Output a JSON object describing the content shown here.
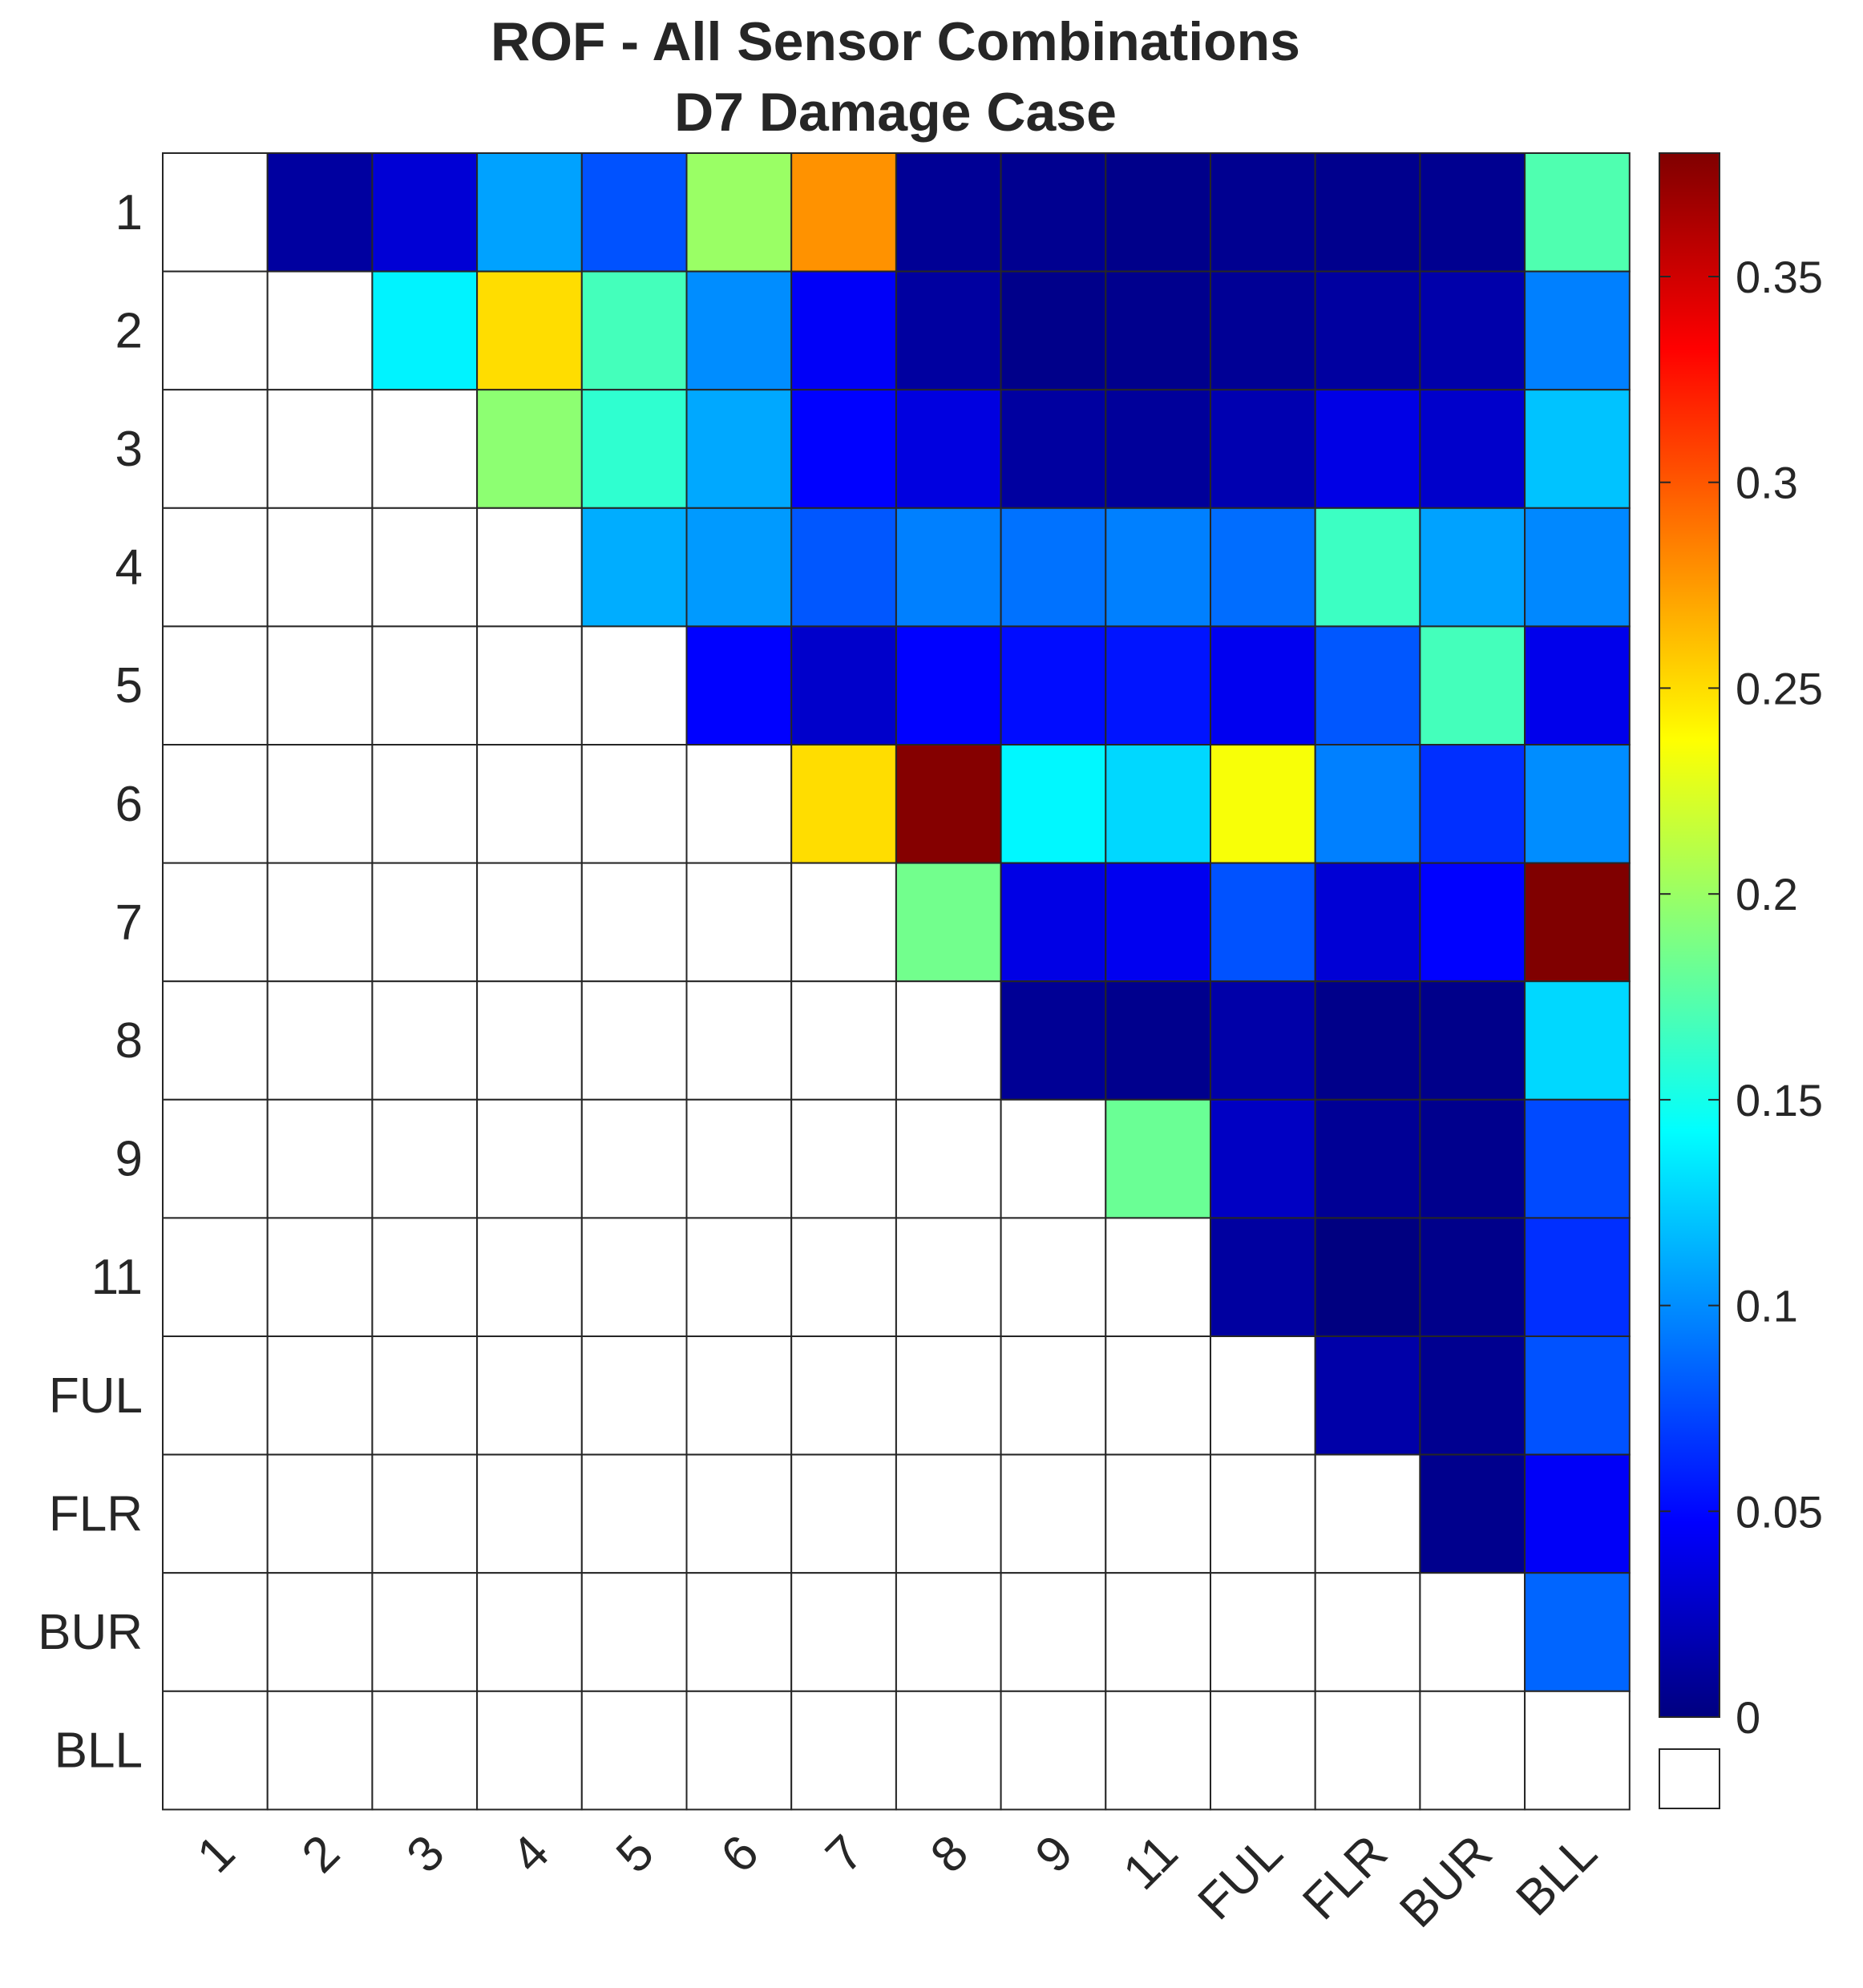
{
  "chart_data": {
    "type": "heatmap",
    "title": [
      "ROF - All Sensor Combinations",
      "D7 Damage Case"
    ],
    "row_labels": [
      "1",
      "2",
      "3",
      "4",
      "5",
      "6",
      "7",
      "8",
      "9",
      "11",
      "FUL",
      "FLR",
      "BUR",
      "BLL"
    ],
    "col_labels": [
      "1",
      "2",
      "3",
      "4",
      "5",
      "6",
      "7",
      "8",
      "9",
      "11",
      "FUL",
      "FLR",
      "BUR",
      "BLL"
    ],
    "values": [
      [
        null,
        0.012,
        0.032,
        0.108,
        0.078,
        0.2,
        0.278,
        0.008,
        0.006,
        0.004,
        0.006,
        0.005,
        0.006,
        0.172
      ],
      [
        null,
        null,
        0.138,
        0.25,
        0.168,
        0.1,
        0.045,
        0.012,
        0.004,
        0.005,
        0.008,
        0.012,
        0.016,
        0.095
      ],
      [
        null,
        null,
        null,
        0.195,
        0.16,
        0.11,
        0.048,
        0.036,
        0.012,
        0.01,
        0.018,
        0.038,
        0.028,
        0.12
      ],
      [
        null,
        null,
        null,
        null,
        0.112,
        0.105,
        0.08,
        0.095,
        0.09,
        0.095,
        0.088,
        0.165,
        0.108,
        0.098
      ],
      [
        null,
        null,
        null,
        null,
        null,
        0.048,
        0.028,
        0.048,
        0.052,
        0.055,
        0.042,
        0.08,
        0.168,
        0.04
      ],
      [
        null,
        null,
        null,
        null,
        null,
        null,
        0.25,
        0.378,
        0.14,
        0.128,
        0.235,
        0.095,
        0.065,
        0.1
      ],
      [
        null,
        null,
        null,
        null,
        null,
        null,
        null,
        0.185,
        0.038,
        0.042,
        0.078,
        0.032,
        0.048,
        0.38
      ],
      [
        null,
        null,
        null,
        null,
        null,
        null,
        null,
        null,
        0.008,
        0.005,
        0.015,
        0.004,
        0.004,
        0.128
      ],
      [
        null,
        null,
        null,
        null,
        null,
        null,
        null,
        null,
        null,
        0.182,
        0.025,
        0.008,
        0.005,
        0.075
      ],
      [
        null,
        null,
        null,
        null,
        null,
        null,
        null,
        null,
        null,
        null,
        0.012,
        0.0,
        0.004,
        0.065
      ],
      [
        null,
        null,
        null,
        null,
        null,
        null,
        null,
        null,
        null,
        null,
        null,
        0.015,
        0.006,
        0.078
      ],
      [
        null,
        null,
        null,
        null,
        null,
        null,
        null,
        null,
        null,
        null,
        null,
        null,
        0.005,
        0.045
      ],
      [
        null,
        null,
        null,
        null,
        null,
        null,
        null,
        null,
        null,
        null,
        null,
        null,
        null,
        0.085
      ],
      [
        null,
        null,
        null,
        null,
        null,
        null,
        null,
        null,
        null,
        null,
        null,
        null,
        null,
        null
      ]
    ],
    "colormap": "jet",
    "clim": [
      0,
      0.38
    ],
    "colorbar": {
      "ticks": [
        0,
        0.05,
        0.1,
        0.15,
        0.2,
        0.25,
        0.3,
        0.35
      ],
      "tick_labels": [
        "0",
        "0.05",
        "0.1",
        "0.15",
        "0.2",
        "0.25",
        "0.3",
        "0.35"
      ],
      "nan_swatch_color": "#ffffff"
    },
    "grid_color": "#262626",
    "empty_cell_color": "#ffffff"
  }
}
